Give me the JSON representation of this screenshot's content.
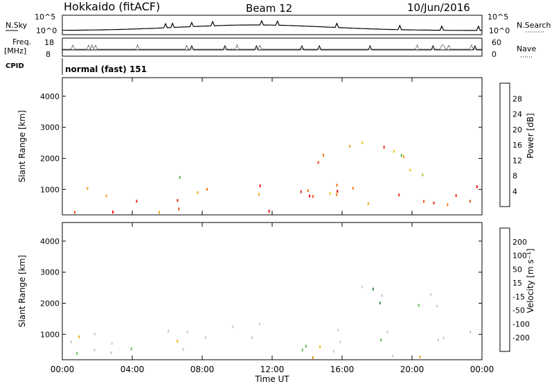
{
  "header": {
    "station": "Hokkaido (fitACF)",
    "beam": "Beam 12",
    "date": "10/Jun/2016"
  },
  "aux": {
    "nsky_label": "N.Sky",
    "nsky_ticks": [
      "10^5",
      "10^0"
    ],
    "nsearch_label": "N.Search",
    "nsearch_ticks": [
      "10^5",
      "10^0"
    ],
    "freq_label": "Freq.",
    "freq_unit": "[MHz]",
    "freq_ticks": [
      "18",
      "8"
    ],
    "nave_label": "Nave",
    "nave_ticks": [
      "60",
      "0"
    ],
    "cpid_label": "CPID",
    "cpid_text": "normal (fast) 151"
  },
  "chart_data": [
    {
      "type": "heatmap",
      "ylabel": "Slant Range [km]",
      "xlabel": "Time UT",
      "xlim": [
        0,
        24
      ],
      "ylim": [
        180,
        4600
      ],
      "yticks": [
        "1000",
        "2000",
        "3000",
        "4000"
      ],
      "xticks": [
        "00:00",
        "04:00",
        "08:00",
        "12:00",
        "16:00",
        "20:00",
        "00:00"
      ],
      "colorbar": {
        "label": "Power [dB]",
        "ticks": [
          "4",
          "8",
          "12",
          "16",
          "20",
          "24",
          "28"
        ],
        "colors": [
          "#0000ff",
          "#1a3fa0",
          "#2d6e6e",
          "#3c8c4c",
          "#5ab040",
          "#a8c838",
          "#e8c820",
          "#f0a020",
          "#f07818",
          "#f05018",
          "#e82818",
          "#ff0000"
        ]
      },
      "bands": [
        {
          "t0": 0.0,
          "t1": 24.0,
          "r0": 500,
          "r1": 1150,
          "val": 24
        },
        {
          "t0": 0.0,
          "t1": 5.5,
          "r0": 300,
          "r1": 700,
          "val": 26
        },
        {
          "t0": 5.5,
          "t1": 18.8,
          "r0": 300,
          "r1": 500,
          "val": 24
        },
        {
          "t0": 10.5,
          "t1": 17.5,
          "r0": 800,
          "r1": 1250,
          "val": 22
        },
        {
          "t0": 6.0,
          "t1": 8.5,
          "r0": 1400,
          "r1": 1800,
          "val": 18
        },
        {
          "t0": 14.0,
          "t1": 17.0,
          "r0": 1700,
          "r1": 2200,
          "val": 22
        },
        {
          "t0": 16.0,
          "t1": 18.8,
          "r0": 2000,
          "r1": 3000,
          "val": 20
        },
        {
          "t0": 18.8,
          "t1": 21.5,
          "r0": 1200,
          "r1": 2800,
          "val": 14
        },
        {
          "t0": 19.0,
          "t1": 24.0,
          "r0": 500,
          "r1": 1300,
          "val": 26
        }
      ]
    },
    {
      "type": "heatmap",
      "ylabel": "Slant Range [km]",
      "xlabel": "Time UT",
      "xlim": [
        0,
        24
      ],
      "ylim": [
        180,
        4600
      ],
      "yticks": [
        "1000",
        "2000",
        "3000",
        "4000"
      ],
      "xticks": [
        "00:00",
        "04:00",
        "08:00",
        "12:00",
        "16:00",
        "20:00",
        "00:00"
      ],
      "colorbar": {
        "label": "Velocity [m s⁻¹]",
        "ticks": [
          "-200",
          "-100",
          "-50",
          "-15",
          "15",
          "50",
          "100",
          "200"
        ],
        "colors": [
          "#ff0000",
          "#f05018",
          "#f08818",
          "#f0b020",
          "#c8c8c8",
          "#60c050",
          "#3c8c4c",
          "#1a3fa0",
          "#0000ff"
        ]
      },
      "bands": [
        {
          "t0": 0.0,
          "t1": 24.0,
          "r0": 300,
          "r1": 1150,
          "val": 0
        },
        {
          "t0": 0.0,
          "t1": 5.5,
          "r0": 200,
          "r1": 600,
          "val": 30
        },
        {
          "t0": 13.0,
          "t1": 17.0,
          "r0": 200,
          "r1": 400,
          "val": -60
        },
        {
          "t0": 16.0,
          "t1": 18.8,
          "r0": 1800,
          "r1": 3000,
          "val": 40
        },
        {
          "t0": 19.0,
          "t1": 21.5,
          "r0": 1200,
          "r1": 2400,
          "val": 35
        },
        {
          "t0": 6.0,
          "t1": 16.0,
          "r0": 1100,
          "r1": 1500,
          "val": 0
        }
      ]
    }
  ]
}
